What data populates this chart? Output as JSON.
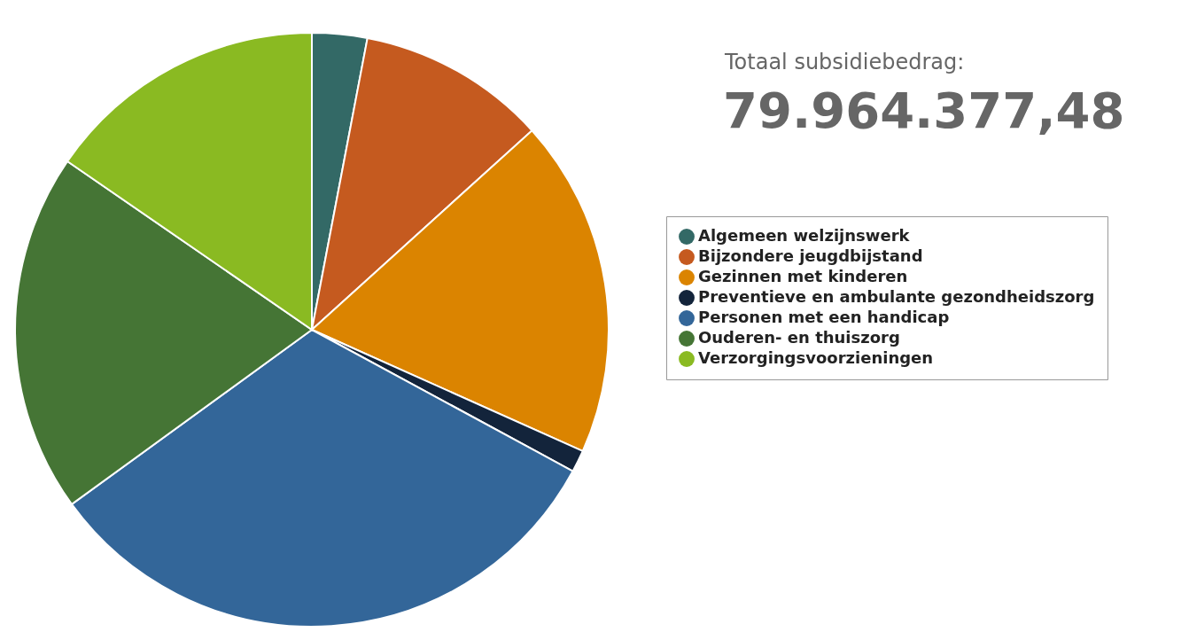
{
  "chart_data": {
    "type": "pie",
    "title": "Totaal subsidiebedrag:",
    "subtitle": "79.964.377,48",
    "categories": [
      "Algemeen welzijnswerk",
      "Bijzondere jeugdbijstand",
      "Gezinnen met kinderen",
      "Preventieve en ambulante gezondheidszorg",
      "Personen met een handicap",
      "Ouderen- en thuiszorg",
      "Verzorgingsvoorzieningen"
    ],
    "values": [
      3,
      10.3,
      18.4,
      1.2,
      32.1,
      19.6,
      15.4
    ],
    "colors": [
      "#336966",
      "#c55a1f",
      "#db8400",
      "#13243b",
      "#336699",
      "#457535",
      "#8aba22"
    ],
    "legend": "right"
  }
}
